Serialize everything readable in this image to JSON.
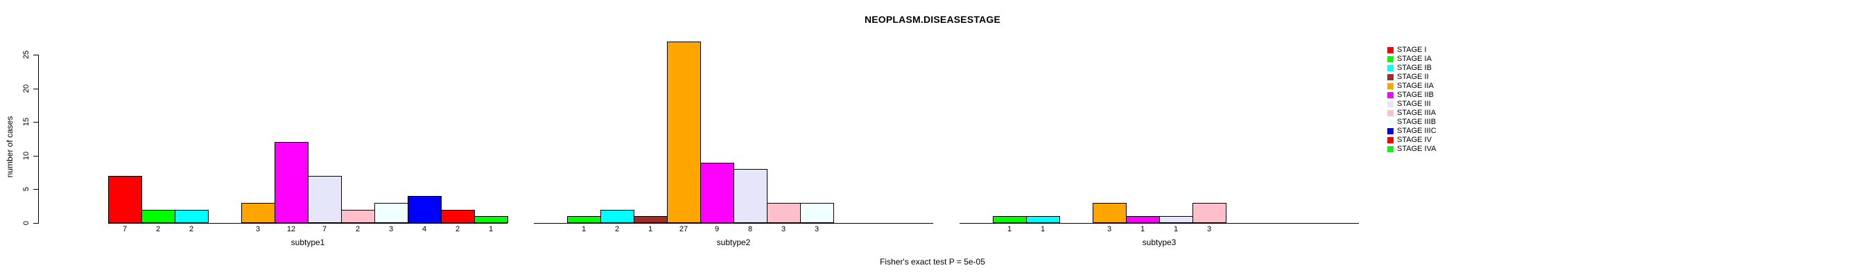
{
  "figure": {
    "title": "NEOPLASM.DISEASESTAGE",
    "annotation": "Fisher's exact test P = 5e-05"
  },
  "chart_data": {
    "type": "bar",
    "title": "NEOPLASM.DISEASESTAGE",
    "xlabel": "",
    "ylabel": "number of cases",
    "yticks": [
      0,
      5,
      10,
      15,
      20,
      25
    ],
    "ylim": [
      0,
      27
    ],
    "grid": false,
    "legend_position": "right",
    "categories": [
      "STAGE I",
      "STAGE IA",
      "STAGE IB",
      "STAGE II",
      "STAGE IIA",
      "STAGE IIB",
      "STAGE III",
      "STAGE IIIA",
      "STAGE IIIB",
      "STAGE IIIC",
      "STAGE IV",
      "STAGE IVA"
    ],
    "palette": [
      "#FF0000",
      "#00FF00",
      "#00FFFF",
      "#A52A2A",
      "#FFA500",
      "#FF00FF",
      "#E6E6FA",
      "#FFC0CB",
      "#F0FFFF",
      "#0000FF",
      "#FF0000",
      "#00FF00"
    ],
    "series": [
      {
        "name": "subtype1",
        "values": [
          7,
          2,
          2,
          0,
          3,
          12,
          7,
          2,
          3,
          4,
          2,
          1
        ]
      },
      {
        "name": "subtype2",
        "values": [
          0,
          1,
          2,
          1,
          27,
          9,
          8,
          3,
          3,
          0,
          0,
          0
        ]
      },
      {
        "name": "subtype3",
        "values": [
          0,
          1,
          1,
          0,
          3,
          1,
          1,
          3,
          0,
          0,
          0,
          0
        ]
      }
    ],
    "value_labels": "count shown under each nonzero bar",
    "annotation": "Fisher's exact test P = 5e-05"
  },
  "legend": {
    "items": [
      {
        "label": "STAGE I",
        "color": "#FF0000"
      },
      {
        "label": "STAGE IA",
        "color": "#00FF00"
      },
      {
        "label": "STAGE IB",
        "color": "#00FFFF"
      },
      {
        "label": "STAGE II",
        "color": "#A52A2A"
      },
      {
        "label": "STAGE IIA",
        "color": "#FFA500"
      },
      {
        "label": "STAGE IIB",
        "color": "#FF00FF"
      },
      {
        "label": "STAGE III",
        "color": "#E6E6FA"
      },
      {
        "label": "STAGE IIIA",
        "color": "#FFC0CB"
      },
      {
        "label": "STAGE IIIB",
        "color": "#F0FFFF"
      },
      {
        "label": "STAGE IIIC",
        "color": "#0000FF"
      },
      {
        "label": "STAGE IV",
        "color": "#FF0000"
      },
      {
        "label": "STAGE IVA",
        "color": "#00FF00"
      }
    ]
  }
}
